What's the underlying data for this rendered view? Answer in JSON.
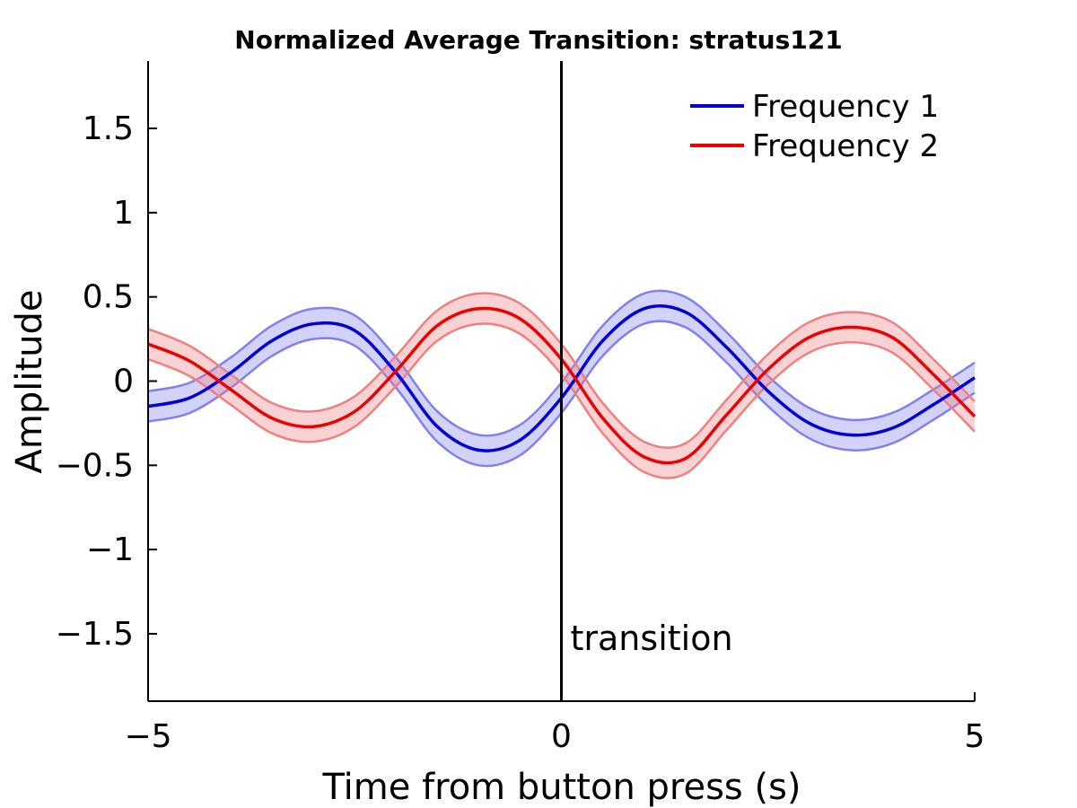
{
  "chart_data": {
    "type": "line",
    "title": "Normalized Average Transition: stratus121",
    "xlabel": "Time from button press (s)",
    "ylabel": "Amplitude",
    "xlim": [
      -5,
      5
    ],
    "ylim": [
      -1.9,
      1.9
    ],
    "xticks": [
      -5,
      0,
      5
    ],
    "xtick_labels": [
      "−5",
      "0",
      "5"
    ],
    "yticks": [
      -1.5,
      -1,
      -0.5,
      0,
      0.5,
      1,
      1.5
    ],
    "ytick_labels": [
      "−1.5",
      "−1",
      "−0.5",
      "0",
      "0.5",
      "1",
      "1.5"
    ],
    "grid": false,
    "legend": "top-right",
    "x": [
      -5.0,
      -4.5,
      -4.0,
      -3.5,
      -3.0,
      -2.5,
      -2.0,
      -1.5,
      -1.0,
      -0.5,
      0.0,
      0.5,
      1.0,
      1.5,
      2.0,
      2.5,
      3.0,
      3.5,
      4.0,
      4.5,
      5.0
    ],
    "series": [
      {
        "name": "Frequency 1",
        "color": "#0000dd",
        "band_color": "#8080ee",
        "values": [
          -0.15,
          -0.1,
          0.05,
          0.24,
          0.34,
          0.3,
          0.05,
          -0.27,
          -0.41,
          -0.35,
          -0.1,
          0.24,
          0.43,
          0.41,
          0.2,
          -0.06,
          -0.25,
          -0.32,
          -0.28,
          -0.14,
          0.02
        ],
        "band": 0.09
      },
      {
        "name": "Frequency 2",
        "color": "#ee0000",
        "band_color": "#ee8080",
        "values": [
          0.22,
          0.12,
          -0.05,
          -0.22,
          -0.27,
          -0.18,
          0.06,
          0.33,
          0.43,
          0.37,
          0.13,
          -0.22,
          -0.45,
          -0.46,
          -0.2,
          0.07,
          0.26,
          0.32,
          0.26,
          0.04,
          -0.21
        ],
        "band": 0.09
      }
    ],
    "annotations": [
      {
        "type": "vline",
        "x": 0,
        "label": "transition",
        "color": "#000000"
      }
    ]
  }
}
